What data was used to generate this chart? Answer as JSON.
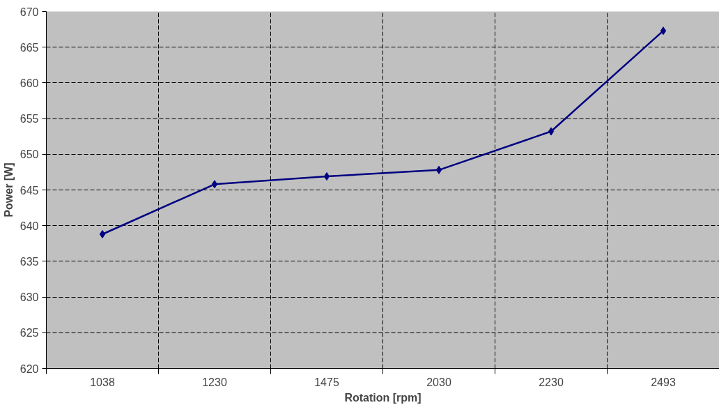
{
  "chart_data": {
    "type": "line",
    "xlabel": "Rotation [rpm]",
    "ylabel": "Power [W]",
    "categories": [
      "1038",
      "1230",
      "1475",
      "2030",
      "2230",
      "2493"
    ],
    "series": [
      {
        "color": "#000080",
        "values": [
          638.8,
          645.8,
          646.9,
          647.8,
          653.2,
          667.3
        ]
      }
    ],
    "ylim": [
      620,
      670
    ],
    "yticks": [
      620,
      625,
      630,
      635,
      640,
      645,
      650,
      655,
      660,
      665,
      670
    ],
    "grid": true,
    "marker": "diamond",
    "line_style": "solid"
  }
}
